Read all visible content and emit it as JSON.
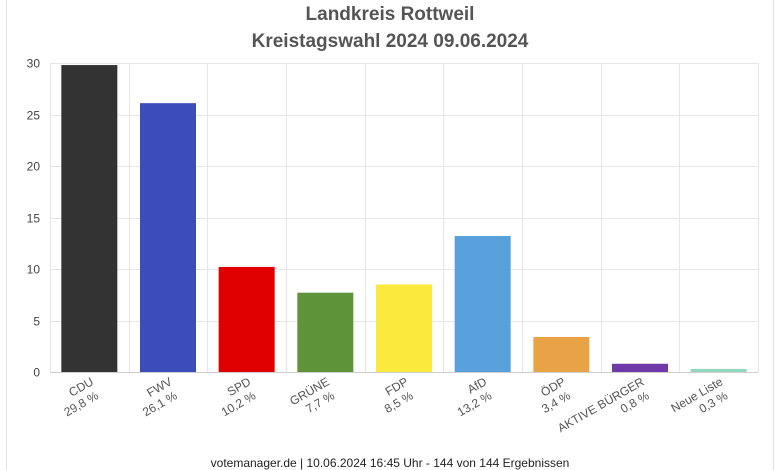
{
  "chart_data": {
    "type": "bar",
    "title": "Landkreis Rottweil",
    "subtitle": "Kreistagswahl 2024 09.06.2024",
    "categories": [
      "CDU",
      "FWV",
      "SPD",
      "GRÜNE",
      "FDP",
      "AfD",
      "ÖDP",
      "AKTIVE BÜRGER",
      "Neue Liste"
    ],
    "values": [
      29.8,
      26.1,
      10.2,
      7.7,
      8.5,
      13.2,
      3.4,
      0.8,
      0.3
    ],
    "value_labels": [
      "29,8 %",
      "26,1 %",
      "10,2 %",
      "7,7 %",
      "8,5 %",
      "13,2 %",
      "3,4 %",
      "0,8 %",
      "0,3 %"
    ],
    "colors": [
      "#333333",
      "#3b4db8",
      "#e00000",
      "#5f933a",
      "#fbe93d",
      "#57a0dc",
      "#e8a346",
      "#6f3aa8",
      "#8fd6bd"
    ],
    "ylim": [
      0,
      30
    ],
    "yticks": [
      0,
      5,
      10,
      15,
      20,
      25,
      30
    ],
    "xlabel": "",
    "ylabel": "",
    "grid": true,
    "legend": "none"
  },
  "footer": "votemanager.de | 10.06.2024 16:45 Uhr - 144 von 144 Ergebnissen"
}
